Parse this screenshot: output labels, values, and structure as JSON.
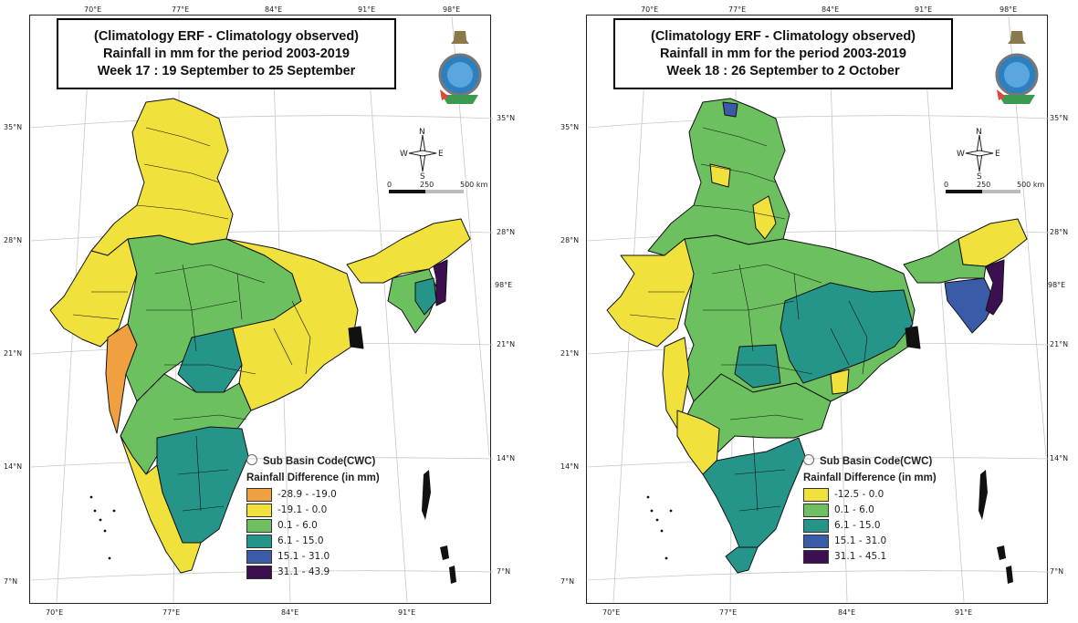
{
  "colors": {
    "orange": "#f0a040",
    "yellow": "#f0e13c",
    "light_green": "#6cc060",
    "teal": "#25958a",
    "blue": "#3a5ca8",
    "purple": "#3c1050",
    "border": "#111111"
  },
  "icons": [
    "compass-rose-icon",
    "imd-emblem-icon",
    "sub-basin-code-circle-icon"
  ],
  "panels": [
    {
      "title_lines": [
        "(Climatology  ERF - Climatology observed)",
        "Rainfall in mm for the period 2003-2019",
        "Week 17 : 19 September to 25 September"
      ],
      "top_lon_labels": [
        "70°E",
        "77°E",
        "84°E",
        "91°E",
        "98°E"
      ],
      "bottom_lon_labels": [
        "70°E",
        "77°E",
        "84°E",
        "91°E"
      ],
      "left_lat_labels": [
        "35°N",
        "28°N",
        "21°N",
        "14°N",
        "7°N"
      ],
      "right_lat_labels": [
        "35°N",
        "28°N",
        "98°E",
        "21°N",
        "14°N",
        "7°N"
      ],
      "compass": {
        "n": "N",
        "s": "S",
        "e": "E",
        "w": "W"
      },
      "scale": {
        "zero": "0",
        "mid": "250",
        "end": "500 km"
      },
      "legend": {
        "sub_basin": "Sub Basin Code(CWC)",
        "heading": "Rainfall Difference (in mm)",
        "items": [
          {
            "label": "-28.9 - -19.0",
            "color": "#f0a040"
          },
          {
            "label": "-19.1 - 0.0",
            "color": "#f0e13c"
          },
          {
            "label": "0.1 - 6.0",
            "color": "#6cc060"
          },
          {
            "label": "6.1 - 15.0",
            "color": "#25958a"
          },
          {
            "label": "15.1 - 31.0",
            "color": "#3a5ca8"
          },
          {
            "label": "31.1 - 43.9",
            "color": "#3c1050"
          }
        ]
      }
    },
    {
      "title_lines": [
        "(Climatology  ERF - Climatology observed)",
        "Rainfall in mm for the period 2003-2019",
        "Week 18 : 26 September to 2 October"
      ],
      "top_lon_labels": [
        "70°E",
        "77°E",
        "84°E",
        "91°E",
        "98°E"
      ],
      "bottom_lon_labels": [
        "70°E",
        "77°E",
        "84°E",
        "91°E"
      ],
      "left_lat_labels": [
        "35°N",
        "28°N",
        "21°N",
        "14°N",
        "7°N"
      ],
      "right_lat_labels": [
        "35°N",
        "28°N",
        "98°E",
        "21°N",
        "14°N",
        "7°N"
      ],
      "compass": {
        "n": "N",
        "s": "S",
        "e": "E",
        "w": "W"
      },
      "scale": {
        "zero": "0",
        "mid": "250",
        "end": "500 km"
      },
      "legend": {
        "sub_basin": "Sub Basin Code(CWC)",
        "heading": "Rainfall Difference (in mm)",
        "items": [
          {
            "label": "-12.5 - 0.0",
            "color": "#f0e13c"
          },
          {
            "label": "0.1 - 6.0",
            "color": "#6cc060"
          },
          {
            "label": "6.1 - 15.0",
            "color": "#25958a"
          },
          {
            "label": "15.1 - 31.0",
            "color": "#3a5ca8"
          },
          {
            "label": "31.1 - 45.1",
            "color": "#3c1050"
          }
        ]
      }
    }
  ]
}
